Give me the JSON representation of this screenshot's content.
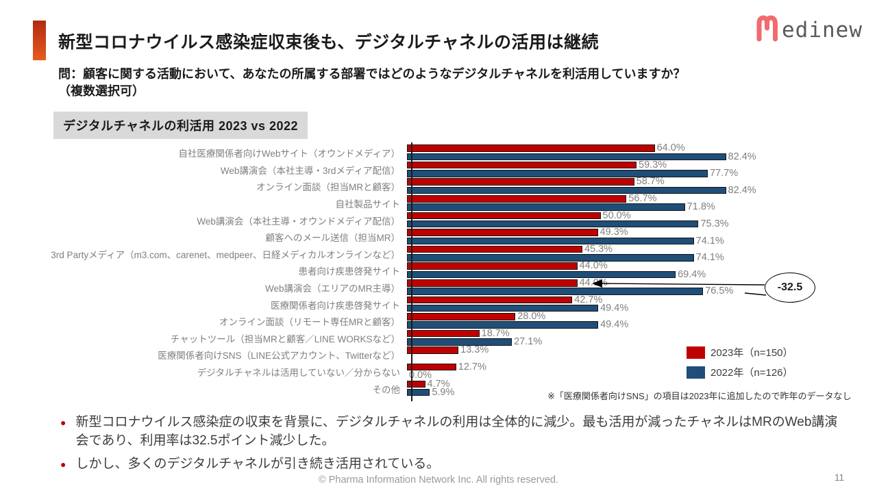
{
  "header": {
    "title": "新型コロナウイルス感染症収束後も、デジタルチャネルの活用は継続",
    "logo_text": "edinew",
    "logo_mark": "medinew-m-icon",
    "logo_mark_color": "#f2696f",
    "accent_colors": [
      "#b02a12",
      "#e65c1e"
    ]
  },
  "question": {
    "line1": "問：顧客に関する活動において、あなたの所属する部署ではどのようなデジタルチャネルを利活用していますか？",
    "line2": "（複数選択可）"
  },
  "badge": "デジタルチャネルの利活用 2023 vs 2022",
  "chart_data": {
    "type": "bar",
    "orientation": "horizontal",
    "value_suffix": "%",
    "xlim": [
      0,
      100
    ],
    "grid": false,
    "legend_position": "right-bottom",
    "categories": [
      "自社医療関係者向けWebサイト（オウンドメディア）",
      "Web講演会（本社主導・3rdメディア配信）",
      "オンライン面談（担当MRと顧客）",
      "自社製品サイト",
      "Web講演会（本社主導・オウンドメディア配信）",
      "顧客へのメール送信（担当MR）",
      "3rd Partyメディア（m3.com、carenet、medpeer、日経メディカルオンラインなど）",
      "患者向け疾患啓発サイト",
      "Web講演会（エリアのMR主導）",
      "医療関係者向け疾患啓発サイト",
      "オンライン面談（リモート専任MRと顧客）",
      "チャットツール（担当MRと顧客／LINE WORKSなど）",
      "医療関係者向けSNS（LINE公式アカウント、Twitterなど）",
      "デジタルチャネルは活用していない／分からない",
      "その他"
    ],
    "series": [
      {
        "name": "2023年（n=150）",
        "color": "#c00000",
        "values": [
          64.0,
          59.3,
          58.7,
          56.7,
          50.0,
          49.3,
          45.3,
          44.0,
          44.0,
          42.7,
          28.0,
          18.7,
          13.3,
          12.7,
          4.7
        ]
      },
      {
        "name": "2022年（n=126）",
        "color": "#1f4e79",
        "values": [
          82.4,
          77.7,
          82.4,
          71.8,
          75.3,
          74.1,
          74.1,
          69.4,
          76.5,
          49.4,
          49.4,
          27.1,
          null,
          0.0,
          5.9
        ]
      }
    ],
    "annotation": {
      "text": "-32.5",
      "target_category": "Web講演会（エリアのMR主導）"
    },
    "footnote": "※「医療関係者向けSNS」の項目は2023年に追加したので昨年のデータなし"
  },
  "legend": {
    "items": [
      {
        "label": "2023年（n=150）",
        "color": "#c00000"
      },
      {
        "label": "2022年（n=126）",
        "color": "#1f4e79"
      }
    ]
  },
  "bullets": [
    "新型コロナウイルス感染症の収束を背景に、デジタルチャネルの利用は全体的に減少。最も活用が減ったチャネルはMRのWeb講演会であり、利用率は32.5ポイント減少した。",
    "しかし、多くのデジタルチャネルが引き続き活用されている。"
  ],
  "footer": {
    "copyright": "© Pharma Information Network Inc.  All rights reserved.",
    "page_number": "11"
  }
}
